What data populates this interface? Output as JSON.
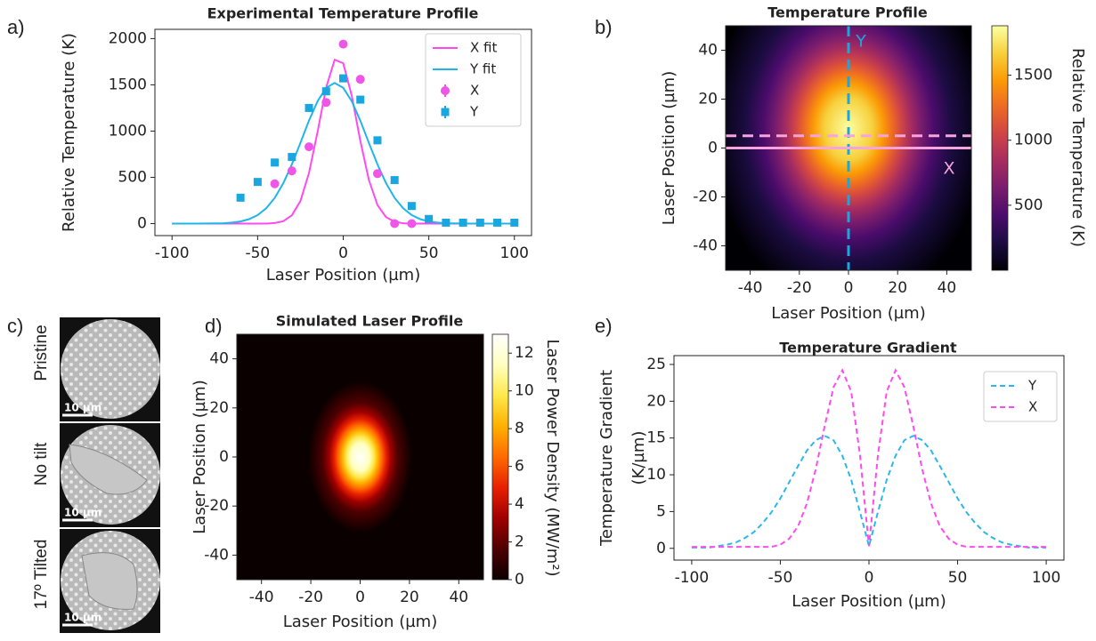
{
  "panel_labels": [
    "a)",
    "b)",
    "c)",
    "d)",
    "e)"
  ],
  "micrographs": {
    "labels": [
      "Pristine",
      "No tilt",
      "17º Tilted"
    ],
    "scale_bars": [
      "10 µm",
      "10 µm",
      "10 µm"
    ]
  },
  "chart_data": [
    {
      "type": "line",
      "title": "Experimental Temperature Profile",
      "xlabel": "Laser Position (µm)",
      "ylabel": "Relative Temperature (K)",
      "xlim": [
        -110,
        110
      ],
      "ylim": [
        -130,
        2100
      ],
      "xticks": [
        -100,
        -50,
        0,
        50,
        100
      ],
      "yticks": [
        0,
        500,
        1000,
        1500,
        2000
      ],
      "legend": "upper right",
      "series": [
        {
          "name": "X fit",
          "kind": "line",
          "color": "#ff4af0",
          "x": [
            -100,
            -95,
            -90,
            -85,
            -80,
            -75,
            -70,
            -65,
            -60,
            -55,
            -50,
            -45,
            -40,
            -35,
            -30,
            -25,
            -20,
            -15,
            -10,
            -5,
            0,
            5,
            10,
            15,
            20,
            25,
            30,
            35,
            40,
            45,
            50,
            55,
            60,
            65,
            70,
            75,
            80,
            85,
            90,
            95,
            100
          ],
          "values": [
            0,
            0,
            0,
            0,
            0,
            0,
            0,
            0,
            0,
            0,
            0,
            0,
            6,
            26,
            89,
            243,
            545,
            993,
            1470,
            1771,
            1734,
            1382,
            895,
            472,
            200,
            70,
            20,
            4,
            0,
            0,
            0,
            0,
            0,
            0,
            0,
            0,
            0,
            0,
            0,
            0,
            0
          ]
        },
        {
          "name": "Y fit",
          "kind": "line",
          "color": "#1fb5ea",
          "x": [
            -100,
            -95,
            -90,
            -85,
            -80,
            -75,
            -70,
            -65,
            -60,
            -55,
            -50,
            -45,
            -40,
            -35,
            -30,
            -25,
            -20,
            -15,
            -10,
            -5,
            0,
            5,
            10,
            15,
            20,
            25,
            30,
            35,
            40,
            45,
            50,
            55,
            60,
            65,
            70,
            75,
            80,
            85,
            90,
            95,
            100
          ],
          "values": [
            0,
            0,
            0,
            0,
            1,
            2,
            4,
            10,
            23,
            48,
            92,
            165,
            278,
            437,
            639,
            873,
            1113,
            1323,
            1468,
            1520,
            1468,
            1323,
            1113,
            873,
            639,
            437,
            278,
            165,
            92,
            48,
            23,
            10,
            4,
            2,
            1,
            0,
            0,
            0,
            0,
            0,
            0
          ]
        },
        {
          "name": "X",
          "kind": "scatter",
          "marker": "circle",
          "color": "#ef55e6",
          "x": [
            -40,
            -30,
            -20,
            -10,
            0,
            10,
            20,
            30,
            40
          ],
          "values": [
            430,
            570,
            830,
            1310,
            1940,
            1560,
            540,
            0,
            0
          ]
        },
        {
          "name": "Y",
          "kind": "scatter",
          "marker": "square",
          "color": "#1aa7e0",
          "x": [
            -60,
            -50,
            -40,
            -30,
            -20,
            -10,
            0,
            10,
            20,
            30,
            40,
            50,
            60,
            70,
            80,
            90,
            100
          ],
          "values": [
            280,
            450,
            660,
            720,
            1250,
            1430,
            1570,
            1340,
            900,
            470,
            190,
            50,
            10,
            10,
            10,
            10,
            10
          ]
        }
      ]
    },
    {
      "type": "heatmap",
      "title": "Temperature Profile",
      "xlabel": "Laser Position (µm)",
      "ylabel": "Laser Position (µm)",
      "xlim": [
        -50,
        50
      ],
      "ylim": [
        -50,
        50
      ],
      "xticks": [
        -40,
        -20,
        0,
        20,
        40
      ],
      "yticks": [
        -40,
        -20,
        0,
        20,
        40
      ],
      "colormap": [
        "#000004",
        "#1b0c41",
        "#4a0c6b",
        "#781c6d",
        "#a52c60",
        "#cf4446",
        "#ed6925",
        "#fb9b06",
        "#f7d13d",
        "#fcffa4"
      ],
      "colorbar": {
        "label": "Relative Temperature (K)",
        "lim": [
          0,
          1880
        ],
        "ticks": [
          500,
          1000,
          1500
        ]
      },
      "lines": [
        {
          "axis": "x",
          "value": 0,
          "color": "#1aa7e0",
          "dash": true,
          "label": "Y"
        },
        {
          "axis": "y",
          "value": 0,
          "color": "#f7a3de",
          "dash": false,
          "label": "X"
        },
        {
          "axis": "y",
          "value": 5,
          "color": "#f7a3de",
          "dash": true
        }
      ]
    },
    {
      "type": "heatmap",
      "title": "Simulated Laser Profile",
      "xlabel": "Laser Position (µm)",
      "ylabel": "Laser Position (µm)",
      "xlim": [
        -50,
        50
      ],
      "ylim": [
        -50,
        50
      ],
      "xticks": [
        -40,
        -20,
        0,
        20,
        40
      ],
      "yticks": [
        -40,
        -20,
        0,
        20,
        40
      ],
      "colormap": [
        "#0b0000",
        "#4d0000",
        "#a00000",
        "#e82000",
        "#ff6a00",
        "#ffb000",
        "#ffe84a",
        "#ffffc0",
        "#ffffff"
      ],
      "colorbar": {
        "label": "Laser Power Density (MW/m²)",
        "lim": [
          0,
          13
        ],
        "ticks": [
          0,
          2,
          4,
          6,
          8,
          10,
          12
        ]
      }
    },
    {
      "type": "line",
      "title": "Temperature Gradient",
      "xlabel": "Laser Position (µm)",
      "ylabel": [
        "Temperature Gradient",
        "(K/µm)"
      ],
      "xlim": [
        -110,
        110
      ],
      "ylim": [
        -1.6,
        26.2
      ],
      "xticks": [
        -100,
        -50,
        0,
        50,
        100
      ],
      "yticks": [
        0,
        5,
        10,
        15,
        20,
        25
      ],
      "legend": "upper right",
      "series": [
        {
          "name": "Y",
          "kind": "line",
          "dash": true,
          "color": "#2ab8ec",
          "x": [
            -100,
            -95,
            -90,
            -85,
            -80,
            -75,
            -70,
            -65,
            -60,
            -55,
            -50,
            -45,
            -40,
            -35,
            -30,
            -25,
            -20,
            -15,
            -10,
            -5,
            0,
            5,
            10,
            15,
            20,
            25,
            30,
            35,
            40,
            45,
            50,
            55,
            60,
            65,
            70,
            75,
            80,
            85,
            90,
            95,
            100
          ],
          "values": [
            0.1,
            0.1,
            0.1,
            0.3,
            0.5,
            0.8,
            1.4,
            2.2,
            3.4,
            4.9,
            6.8,
            9.0,
            11.2,
            13.3,
            14.7,
            15.3,
            14.7,
            12.6,
            9.3,
            4.9,
            0.3,
            4.9,
            9.3,
            12.6,
            14.7,
            15.3,
            14.7,
            13.3,
            11.2,
            9.0,
            6.8,
            4.9,
            3.4,
            2.2,
            1.4,
            0.8,
            0.5,
            0.3,
            0.1,
            0.1,
            0.1
          ]
        },
        {
          "name": "X",
          "kind": "line",
          "dash": true,
          "color": "#ff4af0",
          "x": [
            -100,
            -95,
            -90,
            -85,
            -80,
            -75,
            -70,
            -65,
            -60,
            -55,
            -50,
            -45,
            -40,
            -35,
            -30,
            -25,
            -20,
            -15,
            -10,
            -5,
            0,
            5,
            10,
            15,
            20,
            25,
            30,
            35,
            40,
            45,
            50,
            55,
            60,
            65,
            70,
            75,
            80,
            85,
            90,
            95,
            100
          ],
          "values": [
            0.2,
            0.2,
            0.2,
            0.2,
            0.2,
            0.2,
            0.2,
            0.2,
            0.2,
            0.2,
            0.5,
            1.3,
            3.0,
            6.1,
            10.8,
            16.6,
            21.9,
            24.2,
            21.3,
            12.6,
            0.3,
            12.6,
            21.3,
            24.2,
            21.9,
            16.6,
            10.8,
            6.1,
            3.0,
            1.3,
            0.5,
            0.2,
            0.2,
            0.2,
            0.2,
            0.2,
            0.2,
            0.2,
            0.2,
            0.2,
            0.2
          ]
        }
      ]
    }
  ]
}
